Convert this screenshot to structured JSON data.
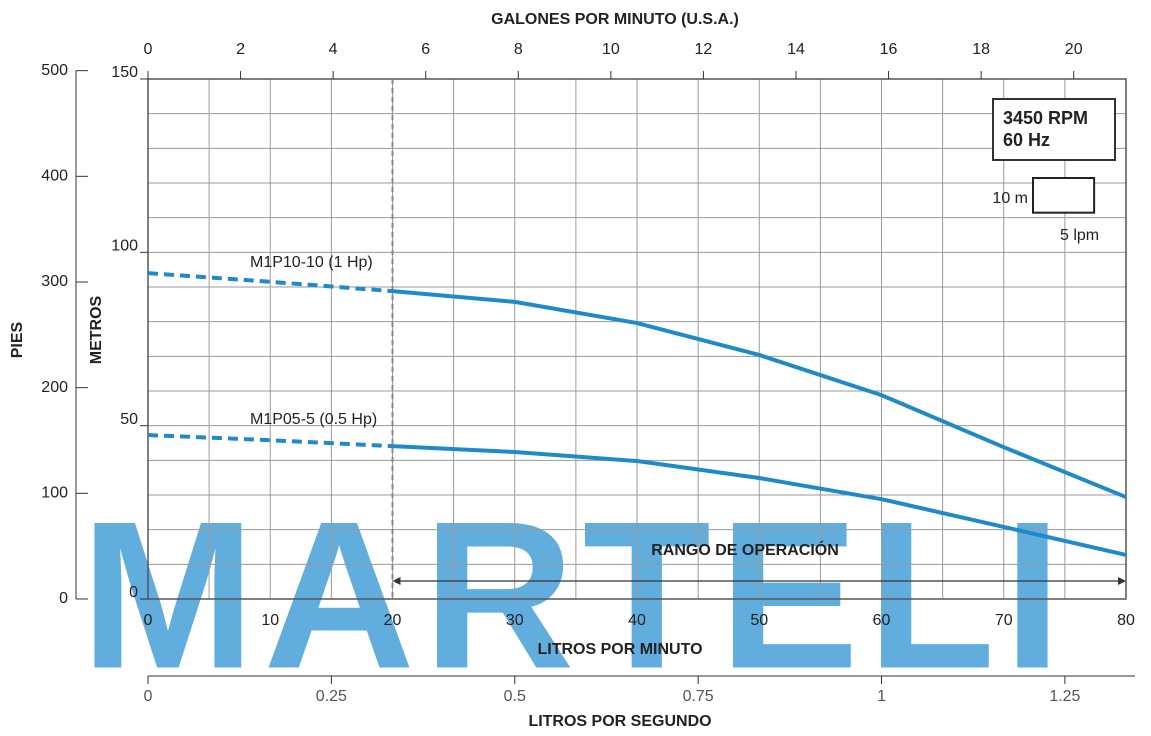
{
  "chart_data": {
    "type": "line",
    "x_label": "LITROS POR MINUTO",
    "y_label": "METROS",
    "x": [
      0,
      10,
      20,
      30,
      40,
      50,
      60,
      70,
      80
    ],
    "xlim": [
      0,
      80
    ],
    "xticks": [
      0,
      10,
      20,
      30,
      40,
      50,
      60,
      70,
      80
    ],
    "xgrid": [
      0,
      5,
      10,
      15,
      20,
      25,
      30,
      35,
      40,
      45,
      50,
      55,
      60,
      65,
      70,
      75,
      80
    ],
    "ylim": [
      0,
      150
    ],
    "yticks": [
      0,
      50,
      100,
      150
    ],
    "ygrid": [
      0,
      10,
      20,
      30,
      40,
      50,
      60,
      70,
      80,
      90,
      100,
      110,
      120,
      130,
      140,
      150
    ],
    "y2_label": "PIES",
    "y2lim": [
      0,
      492.1
    ],
    "y2ticks": [
      0,
      100,
      200,
      300,
      400,
      500
    ],
    "x2_label": "GALONES POR MINUTO (U.S.A.)",
    "x2lim": [
      0,
      21.13
    ],
    "x2ticks": [
      0,
      2,
      4,
      6,
      8,
      10,
      12,
      14,
      16,
      18,
      20
    ],
    "x3_label": "LITROS POR SEGUNDO",
    "x3lim": [
      0,
      1.3333
    ],
    "x3ticks": [
      0,
      0.25,
      0.5,
      0.75,
      1,
      1.25
    ],
    "series": [
      {
        "name": "M1P10-10 (1 Hp)",
        "color": "#1f8ac9",
        "values": [
          94,
          91.5,
          88.8,
          85.7,
          79.6,
          70.4,
          58.8,
          43.8,
          29.4
        ]
      },
      {
        "name": "M1P05-5 (0.5 Hp)",
        "color": "#1f8ac9",
        "values": [
          47.3,
          45.8,
          44.1,
          42.4,
          39.8,
          34.9,
          28.8,
          20.8,
          12.7
        ]
      }
    ],
    "operating_range": {
      "label": "RANGO DE OPERACIÓN",
      "xrange": [
        20,
        80
      ]
    },
    "legend": {
      "lines": [
        "3450 RPM",
        "60 Hz"
      ],
      "corner": "upper right"
    },
    "scale_box": {
      "height_label": "10 m",
      "width_label": "5 lpm",
      "height": 10,
      "width": 5
    },
    "watermark": "MARTELI"
  }
}
